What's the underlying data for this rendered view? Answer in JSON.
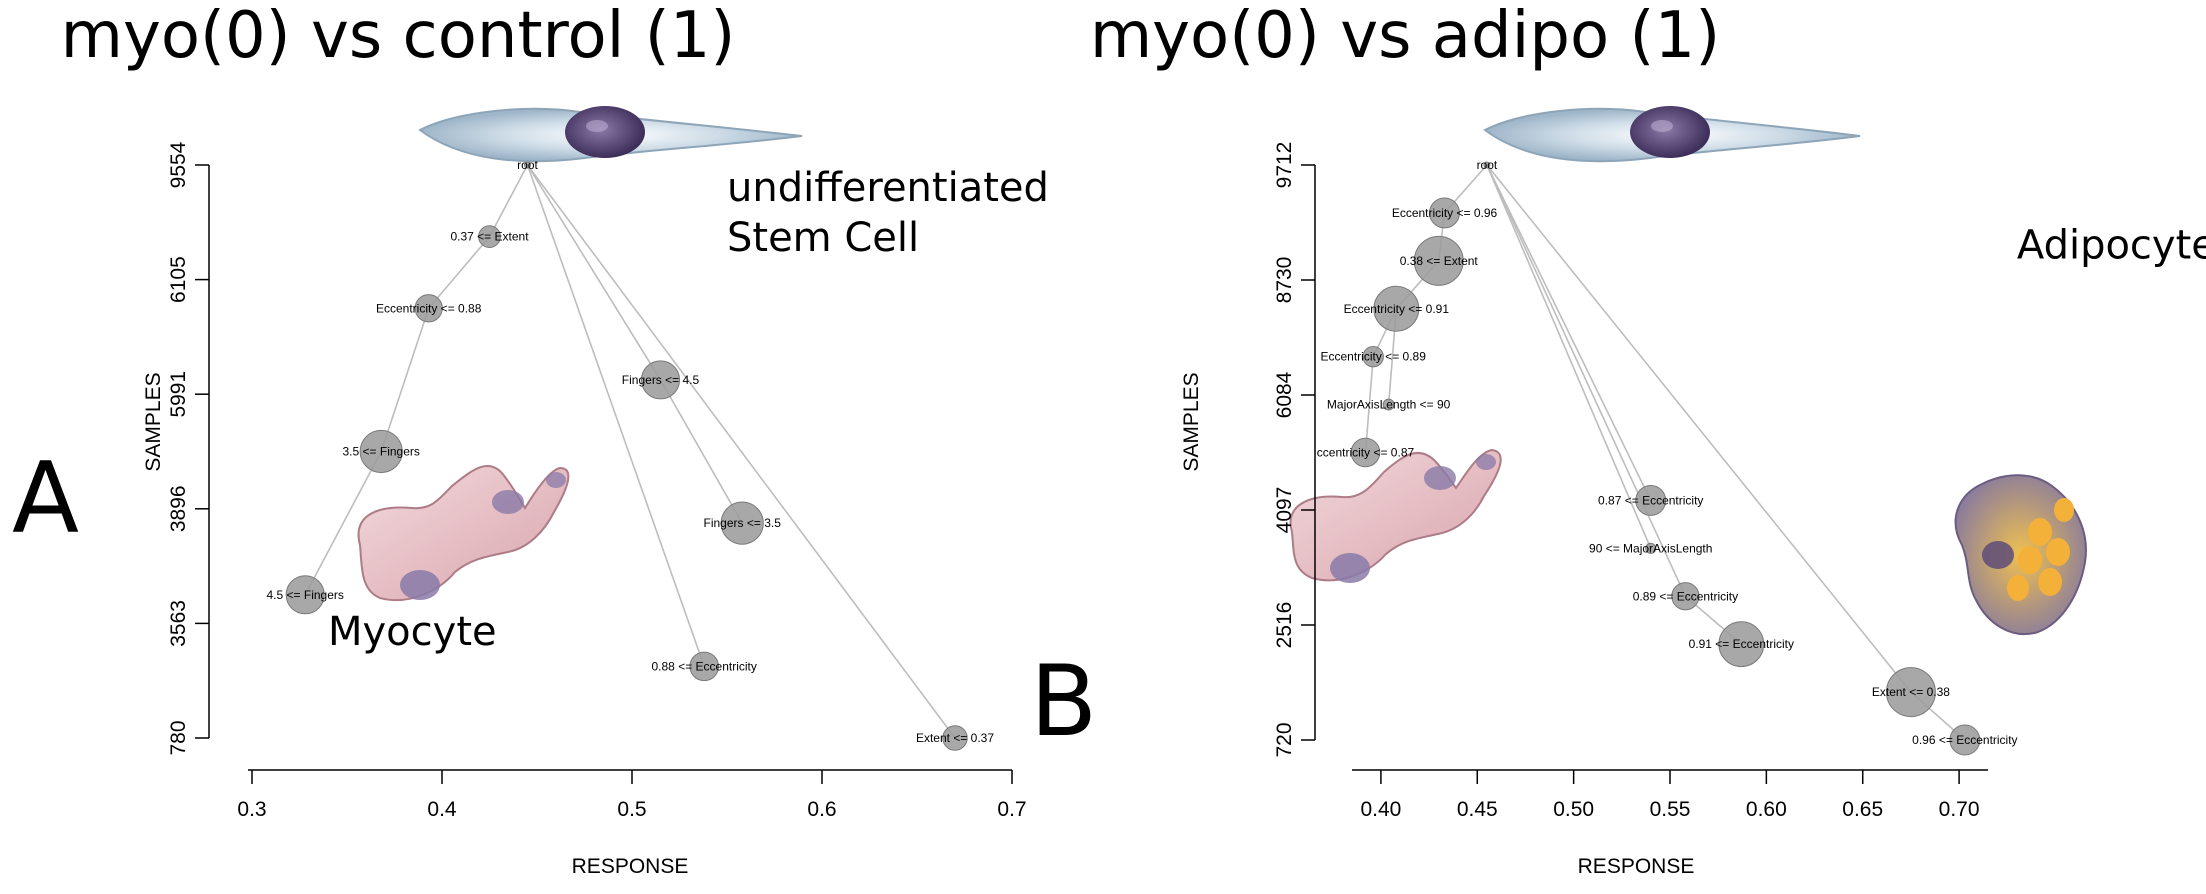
{
  "chart_data": [
    {
      "type": "scatter",
      "panel": "A",
      "title": "myo(0) vs control (1)",
      "xlabel": "RESPONSE",
      "ylabel": "SAMPLES",
      "xlim": [
        0.3,
        0.7
      ],
      "x_ticks": [
        "0.3",
        "0.4",
        "0.5",
        "0.6",
        "0.7"
      ],
      "x_tick_values": [
        0.3,
        0.4,
        0.5,
        0.6,
        0.7
      ],
      "y_ticks": [
        "780",
        "3563",
        "3896",
        "5991",
        "6105",
        "9554"
      ],
      "grid": false,
      "annotations": [
        {
          "text_lines": [
            "undifferentiated",
            "Stem Cell"
          ],
          "x": 0.55,
          "tier": 0.25
        },
        {
          "text_lines": [
            "Myocyte"
          ],
          "x": 0.34,
          "tier": 3.35
        }
      ],
      "nodes": [
        {
          "id": "root",
          "label": "root",
          "x": 0.445,
          "tier": 0,
          "size": 0.05,
          "parent": null
        },
        {
          "id": "a1",
          "label": "0.37 <= Extent",
          "x": 0.425,
          "tier": 0.5,
          "size": 0.32,
          "parent": "root"
        },
        {
          "id": "a2",
          "label": "Eccentricity <= 0.88",
          "x": 0.393,
          "tier": 1,
          "size": 0.4,
          "parent": "a1"
        },
        {
          "id": "a3",
          "label": "3.5 <= Fingers",
          "x": 0.368,
          "tier": 2,
          "size": 0.62,
          "parent": "a2"
        },
        {
          "id": "a4",
          "label": "4.5 <= Fingers",
          "x": 0.328,
          "tier": 3,
          "size": 0.56,
          "parent": "a3"
        },
        {
          "id": "a5",
          "label": "Fingers <= 4.5",
          "x": 0.515,
          "tier": 1.5,
          "size": 0.56,
          "parent": "root"
        },
        {
          "id": "a6",
          "label": "Fingers <= 3.5",
          "x": 0.558,
          "tier": 2.5,
          "size": 0.62,
          "parent": "a5"
        },
        {
          "id": "a7",
          "label": "0.88 <= Eccentricity",
          "x": 0.538,
          "tier": 3.5,
          "size": 0.42,
          "parent": "root"
        },
        {
          "id": "a8",
          "label": "Extent <= 0.37",
          "x": 0.67,
          "tier": 4,
          "size": 0.36,
          "parent": "root"
        }
      ]
    },
    {
      "type": "scatter",
      "panel": "B",
      "title": "myo(0) vs adipo (1)",
      "xlabel": "RESPONSE",
      "ylabel": "SAMPLES",
      "xlim": [
        0.385,
        0.715
      ],
      "x_ticks": [
        "0.40",
        "0.45",
        "0.50",
        "0.55",
        "0.60",
        "0.65",
        "0.70"
      ],
      "x_tick_values": [
        0.4,
        0.45,
        0.5,
        0.55,
        0.6,
        0.65,
        0.7
      ],
      "y_ticks": [
        "720",
        "2516",
        "4097",
        "6084",
        "8730",
        "9712"
      ],
      "grid": false,
      "annotations": [
        {
          "text_lines": [
            "Adipocyte"
          ],
          "x": 0.73,
          "tier": 1.95
        }
      ],
      "nodes": [
        {
          "id": "root",
          "label": "root",
          "x": 0.455,
          "tier": 0,
          "size": 0.05,
          "parent": null
        },
        {
          "id": "b1",
          "label": "Eccentricity <= 0.96",
          "x": 0.433,
          "tier": 1,
          "size": 0.44,
          "parent": "root"
        },
        {
          "id": "b2",
          "label": "0.38 <= Extent",
          "x": 0.43,
          "tier": 2,
          "size": 0.72,
          "parent": "b1"
        },
        {
          "id": "b3",
          "label": "Eccentricity <= 0.91",
          "x": 0.408,
          "tier": 3,
          "size": 0.66,
          "parent": "b2"
        },
        {
          "id": "b4",
          "label": "Eccentricity <= 0.89",
          "x": 0.396,
          "tier": 4,
          "size": 0.3,
          "parent": "b3"
        },
        {
          "id": "b5",
          "label": "MajorAxisLength <= 90",
          "x": 0.404,
          "tier": 5,
          "size": 0.16,
          "parent": "b3"
        },
        {
          "id": "b6",
          "label": "ccentricity <= 0.87",
          "x": 0.392,
          "tier": 6,
          "size": 0.42,
          "parent": "b4"
        },
        {
          "id": "b7",
          "label": "0.87 <= Eccentricity",
          "x": 0.54,
          "tier": 7,
          "size": 0.44,
          "parent": "root"
        },
        {
          "id": "b8",
          "label": "90 <= MajorAxisLength",
          "x": 0.54,
          "tier": 8,
          "size": 0.15,
          "parent": "root"
        },
        {
          "id": "b9",
          "label": "0.89 <= Eccentricity",
          "x": 0.558,
          "tier": 9,
          "size": 0.4,
          "parent": "root"
        },
        {
          "id": "b10",
          "label": "0.91 <= Eccentricity",
          "x": 0.587,
          "tier": 10,
          "size": 0.66,
          "parent": "b9"
        },
        {
          "id": "b11",
          "label": "Extent <= 0.38",
          "x": 0.675,
          "tier": 11,
          "size": 0.72,
          "parent": "root"
        },
        {
          "id": "b12",
          "label": "0.96 <= Eccentricity",
          "x": 0.703,
          "tier": 12,
          "size": 0.44,
          "parent": "b11"
        }
      ]
    }
  ]
}
